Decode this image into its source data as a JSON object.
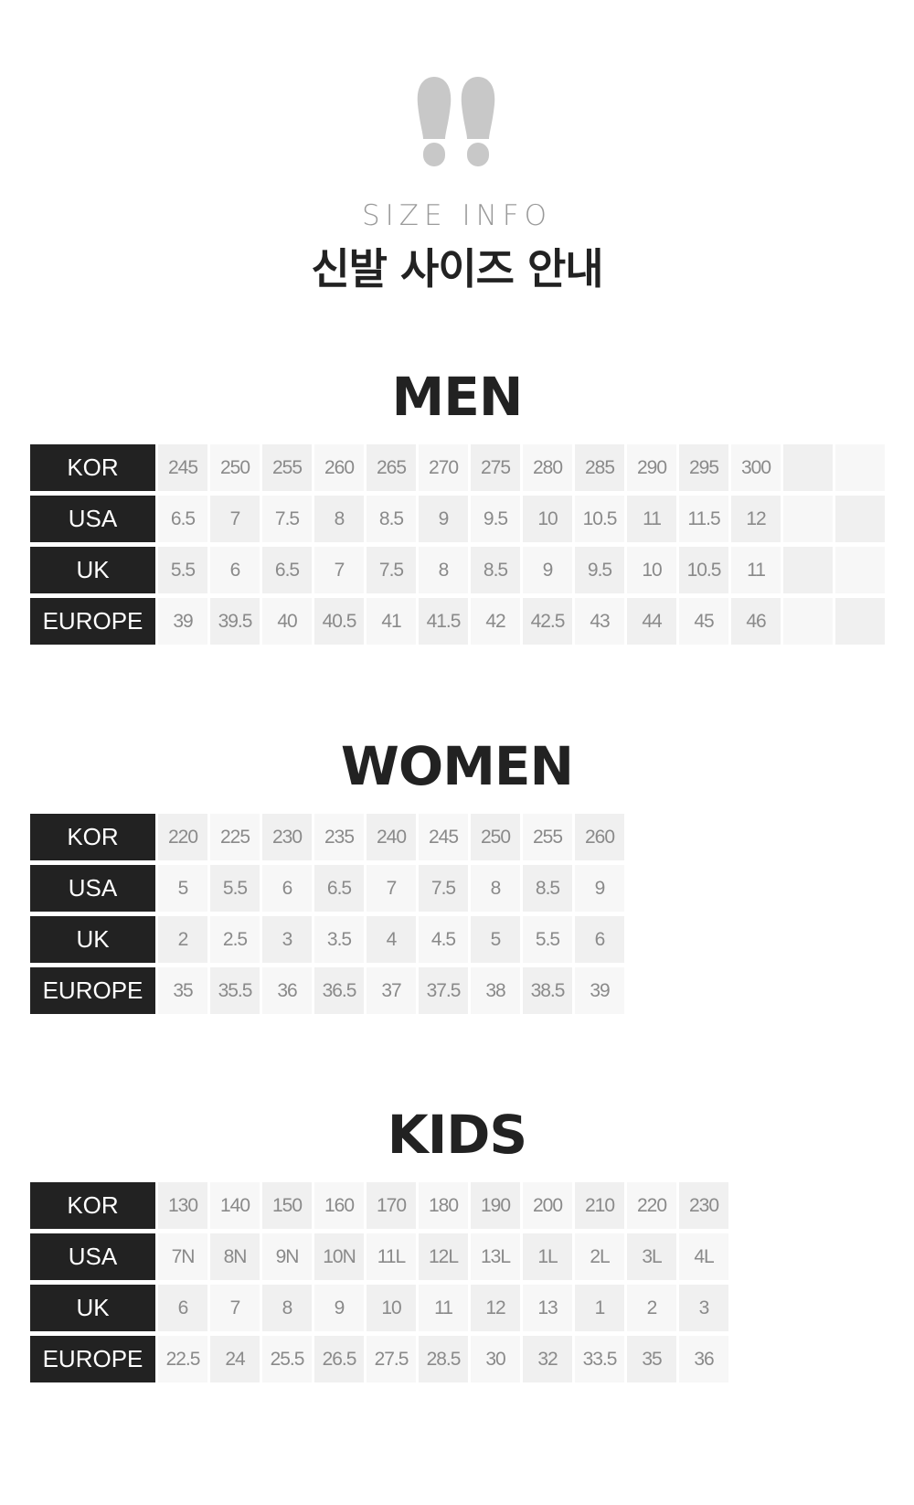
{
  "header": {
    "icon": "footprints-icon",
    "subtitle": "SIZE INFO",
    "title": "신발 사이즈 안내"
  },
  "sections": [
    {
      "title": "MEN",
      "rows": [
        {
          "label": "KOR",
          "values": [
            "245",
            "250",
            "255",
            "260",
            "265",
            "270",
            "275",
            "280",
            "285",
            "290",
            "295",
            "300",
            "",
            ""
          ]
        },
        {
          "label": "USA",
          "values": [
            "6.5",
            "7",
            "7.5",
            "8",
            "8.5",
            "9",
            "9.5",
            "10",
            "10.5",
            "11",
            "11.5",
            "12",
            "",
            ""
          ]
        },
        {
          "label": "UK",
          "values": [
            "5.5",
            "6",
            "6.5",
            "7",
            "7.5",
            "8",
            "8.5",
            "9",
            "9.5",
            "10",
            "10.5",
            "11",
            "",
            ""
          ]
        },
        {
          "label": "EUROPE",
          "values": [
            "39",
            "39.5",
            "40",
            "40.5",
            "41",
            "41.5",
            "42",
            "42.5",
            "43",
            "44",
            "45",
            "46",
            "",
            ""
          ]
        }
      ]
    },
    {
      "title": "WOMEN",
      "rows": [
        {
          "label": "KOR",
          "values": [
            "220",
            "225",
            "230",
            "235",
            "240",
            "245",
            "250",
            "255",
            "260"
          ]
        },
        {
          "label": "USA",
          "values": [
            "5",
            "5.5",
            "6",
            "6.5",
            "7",
            "7.5",
            "8",
            "8.5",
            "9"
          ]
        },
        {
          "label": "UK",
          "values": [
            "2",
            "2.5",
            "3",
            "3.5",
            "4",
            "4.5",
            "5",
            "5.5",
            "6"
          ]
        },
        {
          "label": "EUROPE",
          "values": [
            "35",
            "35.5",
            "36",
            "36.5",
            "37",
            "37.5",
            "38",
            "38.5",
            "39"
          ]
        }
      ]
    },
    {
      "title": "KIDS",
      "rows": [
        {
          "label": "KOR",
          "values": [
            "130",
            "140",
            "150",
            "160",
            "170",
            "180",
            "190",
            "200",
            "210",
            "220",
            "230"
          ]
        },
        {
          "label": "USA",
          "values": [
            "7N",
            "8N",
            "9N",
            "10N",
            "11L",
            "12L",
            "13L",
            "1L",
            "2L",
            "3L",
            "4L"
          ]
        },
        {
          "label": "UK",
          "values": [
            "6",
            "7",
            "8",
            "9",
            "10",
            "11",
            "12",
            "13",
            "1",
            "2",
            "3"
          ]
        },
        {
          "label": "EUROPE",
          "values": [
            "22.5",
            "24",
            "25.5",
            "26.5",
            "27.5",
            "28.5",
            "30",
            "32",
            "33.5",
            "35",
            "36"
          ]
        }
      ]
    }
  ],
  "colors": {
    "label_bg": "#222222",
    "cell_dark": "#f0f0f0",
    "cell_light": "#f7f7f7",
    "value_text": "#8a8a8a",
    "icon": "#c8c8c8"
  }
}
